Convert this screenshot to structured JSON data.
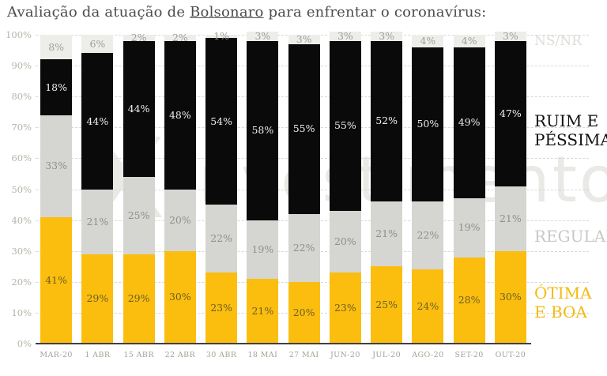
{
  "title": {
    "prefix": "Avaliação da atuação de ",
    "highlight": "Bolsonaro",
    "suffix": " para enfrentar o coronavírus:"
  },
  "watermark": {
    "logo": "X",
    "text": "investimentos"
  },
  "legend": {
    "nsnr": "NS/NR",
    "ruim": [
      "RUIM E",
      "PÉSSIMA"
    ],
    "regular": "REGULAR",
    "otima": [
      "ÓTIMA",
      "E BOA"
    ]
  },
  "colors": {
    "otima": "#FBBE0F",
    "regular": "#D5D5D2",
    "ruim": "#0A0A0A",
    "nsnr": "#EDEDEA",
    "grid": "#D8D8D4",
    "axis": "#404040",
    "tick_text": "#B7B3A9"
  },
  "chart_data": {
    "type": "bar",
    "stacked": true,
    "categories": [
      "MAR-20",
      "1 ABR",
      "15 ABR",
      "22 ABR",
      "30 ABR",
      "18 MAI",
      "27 MAI",
      "JUN-20",
      "JUL-20",
      "AGO-20",
      "SET-20",
      "OUT-20"
    ],
    "series": [
      {
        "name": "ÓTIMA E BOA",
        "color": "#FBBE0F",
        "label_color": "#6C5F22",
        "values": [
          41,
          29,
          29,
          30,
          23,
          21,
          20,
          23,
          25,
          24,
          28,
          30
        ]
      },
      {
        "name": "REGULAR",
        "color": "#D5D5D2",
        "label_color": "#8F8F8D",
        "values": [
          33,
          21,
          25,
          20,
          22,
          19,
          22,
          20,
          21,
          22,
          19,
          21
        ]
      },
      {
        "name": "RUIM E PÉSSIMA",
        "color": "#0A0A0A",
        "label_color": "#EDEDED",
        "values": [
          18,
          44,
          44,
          48,
          54,
          58,
          55,
          55,
          52,
          50,
          49,
          47
        ]
      },
      {
        "name": "NS/NR",
        "color": "#EDEDEA",
        "label_color": "#9E9E9A",
        "values": [
          8,
          6,
          2,
          2,
          1,
          3,
          3,
          3,
          3,
          4,
          4,
          3
        ]
      }
    ],
    "title": "Avaliação da atuação de Bolsonaro para enfrentar o coronavírus:",
    "xlabel": "",
    "ylabel": "",
    "ylim": [
      0,
      100
    ],
    "y_ticks": [
      "0%",
      "10%",
      "20%",
      "30%",
      "40%",
      "50%",
      "60%",
      "70%",
      "80%",
      "90%",
      "100%"
    ],
    "grid": "horizontal-dashed",
    "legend_position": "right",
    "value_suffix": "%"
  }
}
